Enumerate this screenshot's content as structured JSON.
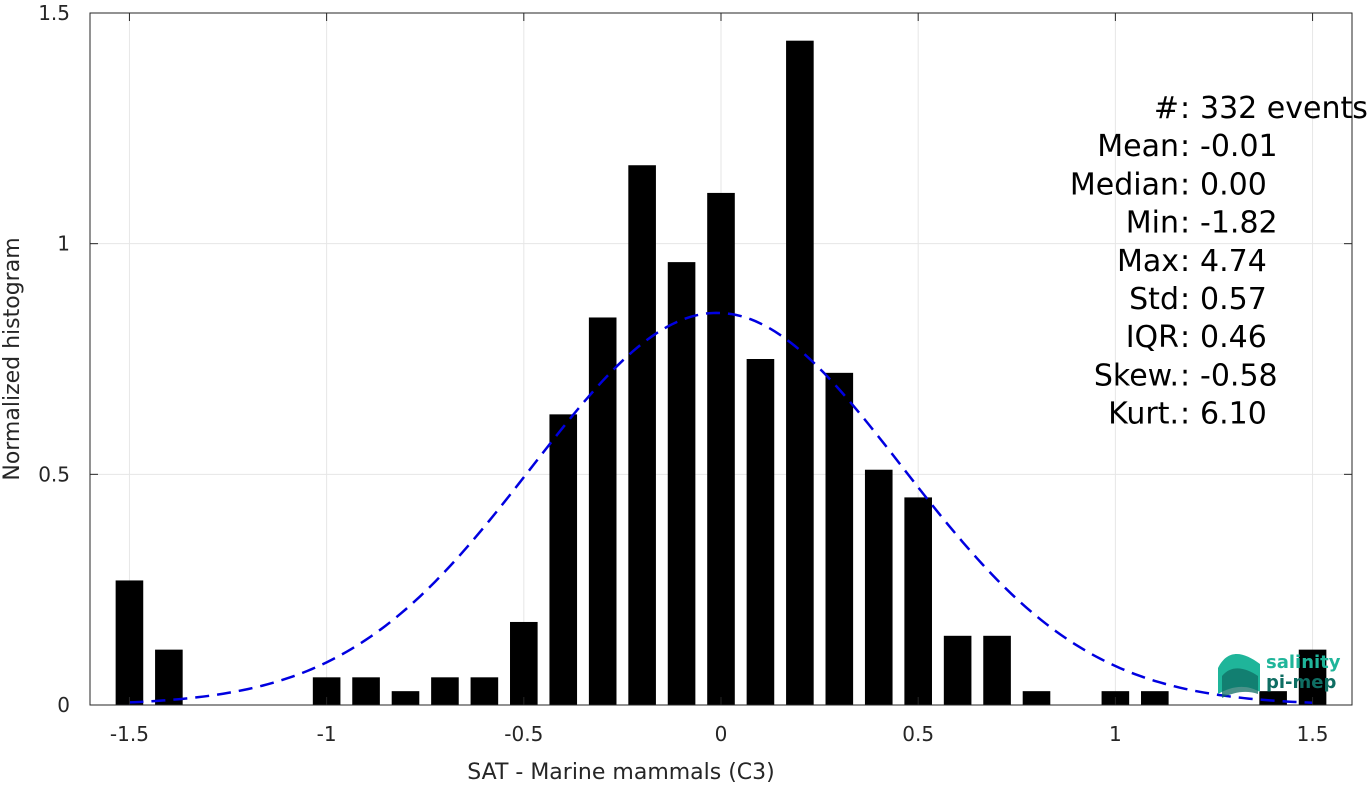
{
  "chart_data": {
    "type": "bar",
    "xlabel": "SAT - Marine mammals (C3)",
    "ylabel": "Normalized histogram",
    "xlim": [
      -1.6,
      1.6
    ],
    "ylim": [
      0,
      1.5
    ],
    "x_ticks": [
      -1.5,
      -1,
      -0.5,
      0,
      0.5,
      1,
      1.5
    ],
    "x_tick_labels": [
      "-1.5",
      "-1",
      "-0.5",
      "0",
      "0.5",
      "1",
      "1.5"
    ],
    "y_ticks": [
      0,
      0.5,
      1,
      1.5
    ],
    "y_tick_labels": [
      "0",
      "0.5",
      "1",
      "1.5"
    ],
    "grid": true,
    "bar_color": "#000000",
    "bin_width": 0.1,
    "bins": [
      {
        "x": -1.5,
        "value": 0.27
      },
      {
        "x": -1.4,
        "value": 0.12
      },
      {
        "x": -1.0,
        "value": 0.06
      },
      {
        "x": -0.9,
        "value": 0.06
      },
      {
        "x": -0.8,
        "value": 0.03
      },
      {
        "x": -0.7,
        "value": 0.06
      },
      {
        "x": -0.6,
        "value": 0.06
      },
      {
        "x": -0.5,
        "value": 0.18
      },
      {
        "x": -0.4,
        "value": 0.63
      },
      {
        "x": -0.3,
        "value": 0.84
      },
      {
        "x": -0.2,
        "value": 1.17
      },
      {
        "x": -0.1,
        "value": 0.96
      },
      {
        "x": 0.0,
        "value": 1.11
      },
      {
        "x": 0.1,
        "value": 0.75
      },
      {
        "x": 0.2,
        "value": 1.44
      },
      {
        "x": 0.3,
        "value": 0.72
      },
      {
        "x": 0.4,
        "value": 0.51
      },
      {
        "x": 0.5,
        "value": 0.45
      },
      {
        "x": 0.6,
        "value": 0.15
      },
      {
        "x": 0.7,
        "value": 0.15
      },
      {
        "x": 0.8,
        "value": 0.03
      },
      {
        "x": 1.0,
        "value": 0.03
      },
      {
        "x": 1.1,
        "value": 0.03
      },
      {
        "x": 1.4,
        "value": 0.03
      },
      {
        "x": 1.5,
        "value": 0.12
      }
    ],
    "fit_curve": {
      "style": "dashed",
      "color": "#0000e0",
      "mean": -0.01,
      "std": 0.47,
      "amplitude": 0.85,
      "x_range": [
        -1.5,
        1.5
      ]
    },
    "stats": [
      {
        "label": "#  ",
        "value": "332 events"
      },
      {
        "label": "Mean",
        "value": "-0.01"
      },
      {
        "label": "Median",
        "value": "0.00"
      },
      {
        "label": "Min",
        "value": "-1.82"
      },
      {
        "label": "Max",
        "value": "4.74"
      },
      {
        "label": "Std",
        "value": "0.57"
      },
      {
        "label": "IQR",
        "value": "0.46"
      },
      {
        "label": "Skew.",
        "value": "-0.58"
      },
      {
        "label": "Kurt.",
        "value": "6.10"
      }
    ]
  },
  "logo": {
    "line1": "salinity",
    "line2": "pi-mep",
    "color_primary": "#1fb59a",
    "color_secondary": "#0f6e63"
  }
}
